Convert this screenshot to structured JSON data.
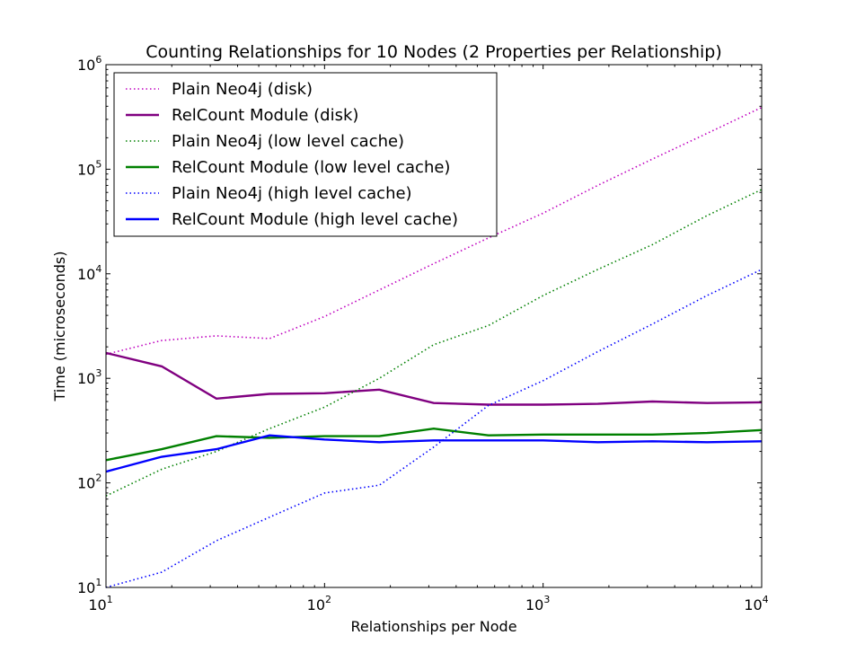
{
  "chart_data": {
    "type": "line",
    "title": "Counting Relationships for 10 Nodes (2 Properties per Relationship)",
    "xlabel": "Relationships per Node",
    "ylabel": "Time (microseconds)",
    "xscale": "log",
    "yscale": "log",
    "xlim": [
      10,
      10000
    ],
    "ylim": [
      10,
      1000000
    ],
    "legend_position": "upper-left",
    "grid": false,
    "x_ticks": [
      {
        "value": 10,
        "base": "10",
        "exp": "1"
      },
      {
        "value": 100,
        "base": "10",
        "exp": "2"
      },
      {
        "value": 1000,
        "base": "10",
        "exp": "3"
      },
      {
        "value": 10000,
        "base": "10",
        "exp": "4"
      }
    ],
    "y_ticks": [
      {
        "value": 10,
        "base": "10",
        "exp": "1"
      },
      {
        "value": 100,
        "base": "10",
        "exp": "2"
      },
      {
        "value": 1000,
        "base": "10",
        "exp": "3"
      },
      {
        "value": 10000,
        "base": "10",
        "exp": "4"
      },
      {
        "value": 100000,
        "base": "10",
        "exp": "5"
      },
      {
        "value": 1000000,
        "base": "10",
        "exp": "6"
      }
    ],
    "x": [
      10,
      18,
      32,
      56,
      100,
      178,
      316,
      562,
      1000,
      1778,
      3162,
      5623,
      10000
    ],
    "series": [
      {
        "name": "Plain Neo4j (disk)",
        "color": "#bf00bf",
        "style": "dotted",
        "values": [
          1700,
          2300,
          2550,
          2400,
          3900,
          7000,
          12500,
          22000,
          38000,
          70000,
          125000,
          220000,
          390000
        ]
      },
      {
        "name": "RelCount Module (disk)",
        "color": "#800080",
        "style": "solid",
        "values": [
          1750,
          1300,
          640,
          710,
          720,
          780,
          580,
          560,
          560,
          570,
          600,
          580,
          590
        ]
      },
      {
        "name": "Plain Neo4j (low level cache)",
        "color": "#008000",
        "style": "dotted",
        "values": [
          75,
          135,
          200,
          330,
          530,
          1000,
          2100,
          3200,
          6200,
          11000,
          19000,
          36000,
          64000
        ]
      },
      {
        "name": "RelCount Module (low level cache)",
        "color": "#008000",
        "style": "solid",
        "values": [
          165,
          210,
          280,
          270,
          280,
          280,
          330,
          285,
          290,
          290,
          290,
          300,
          320
        ]
      },
      {
        "name": "Plain Neo4j (high level cache)",
        "color": "#0000ff",
        "style": "dotted",
        "values": [
          10,
          14,
          28,
          47,
          80,
          95,
          220,
          550,
          950,
          1800,
          3300,
          6200,
          11000
        ]
      },
      {
        "name": "RelCount Module (high level cache)",
        "color": "#0000ff",
        "style": "solid",
        "values": [
          128,
          178,
          210,
          285,
          260,
          245,
          255,
          255,
          255,
          245,
          250,
          245,
          250
        ]
      }
    ]
  }
}
